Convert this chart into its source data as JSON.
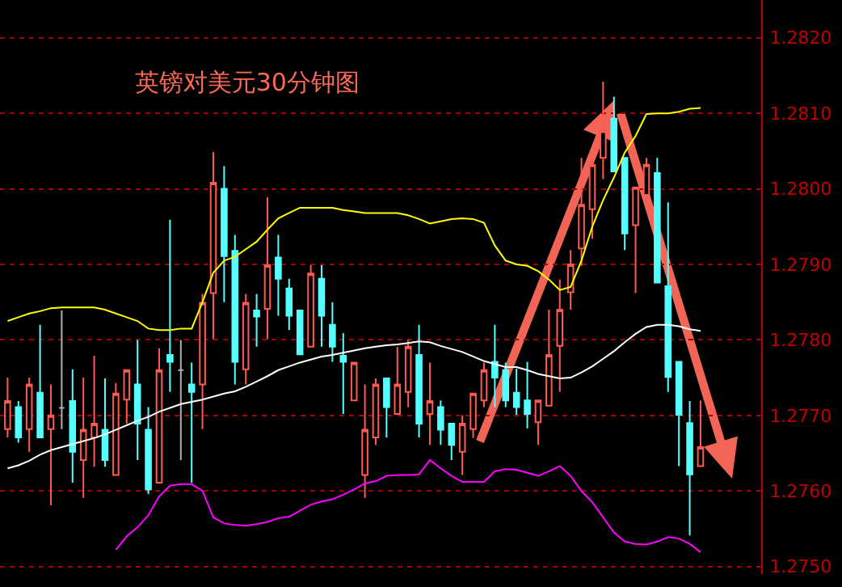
{
  "chart_data": {
    "type": "candlestick",
    "title": "英镑对美元30分钟图",
    "categories": [
      null,
      null,
      null,
      null,
      null,
      null,
      null,
      null,
      null,
      null,
      null,
      null,
      null,
      null,
      null,
      null,
      null,
      null,
      null,
      null,
      null,
      null,
      null,
      null,
      null,
      null,
      null,
      null,
      null,
      null,
      null,
      null,
      null,
      null,
      null,
      null,
      null,
      null,
      null,
      null,
      null,
      null,
      null,
      null,
      null,
      null,
      null,
      null,
      null,
      null,
      null,
      null,
      null,
      null,
      null,
      null,
      null,
      null,
      null,
      null,
      null,
      null,
      null,
      null,
      null
    ],
    "colors": [
      "#ff5a50",
      "#54ffff",
      "#ff5a50",
      "#54ffff",
      "#ff5a50",
      "#b0b0b0",
      "#54ffff",
      "#ff5a50",
      "#ff5a50",
      "#54ffff",
      "#ff5a50",
      "#ff5a50",
      "#54ffff",
      "#54ffff",
      "#ff5a50",
      "#54ffff",
      "#b0b0b0",
      "#54ffff",
      "#ff5a50",
      "#ff5a50",
      "#54ffff",
      "#54ffff",
      "#ff5a50",
      "#54ffff",
      "#ff5a50",
      "#54ffff",
      "#54ffff",
      "#54ffff",
      "#ff5a50",
      "#54ffff",
      "#54ffff",
      "#54ffff",
      "#ff5a50",
      "#ff5a50",
      "#ff5a50",
      "#54ffff",
      "#ff5a50",
      "#ff5a50",
      "#54ffff",
      "#ff5a50",
      "#54ffff",
      "#54ffff",
      "#ff5a50",
      "#ff5a50",
      "#ff5a50",
      "#54ffff",
      "#54ffff",
      "#54ffff",
      "#54ffff",
      "#ff5a50",
      "#ff5a50",
      "#ff5a50",
      "#ff5a50",
      "#ff5a50",
      "#ff5a50",
      "#ff5a50",
      "#54ffff",
      "#54ffff",
      "#ff5a50",
      "#ff5a50",
      "#54ffff",
      "#54ffff",
      "#54ffff",
      "#54ffff",
      "#ff5a50"
    ],
    "ohlc": [
      [
        1.27682,
        1.2775,
        1.27671,
        1.27719
      ],
      [
        1.27711,
        1.27719,
        1.27664,
        1.27671
      ],
      [
        1.27682,
        1.2775,
        1.27652,
        1.27741
      ],
      [
        1.2773,
        1.2782,
        1.27671,
        1.27671
      ],
      [
        1.27682,
        1.27741,
        1.27581,
        1.277
      ],
      [
        1.2771,
        1.27839,
        1.27682,
        1.2771
      ],
      [
        1.27719,
        1.27761,
        1.27611,
        1.27652
      ],
      [
        1.27641,
        1.2775,
        1.27591,
        1.27681
      ],
      [
        1.27671,
        1.27779,
        1.27632,
        1.27689
      ],
      [
        1.27681,
        1.27749,
        1.27632,
        1.27641
      ],
      [
        1.27621,
        1.27743,
        1.27621,
        1.27729
      ],
      [
        1.27721,
        1.2776,
        1.27689,
        1.2776
      ],
      [
        1.27741,
        1.278,
        1.27641,
        1.27689
      ],
      [
        1.27681,
        1.27711,
        1.27596,
        1.27602
      ],
      [
        1.27611,
        1.27789,
        1.27611,
        1.2776
      ],
      [
        1.2778,
        1.27959,
        1.27731,
        1.27771
      ],
      [
        1.2776,
        1.278,
        1.27641,
        1.2776
      ],
      [
        1.27741,
        1.2777,
        1.27611,
        1.27731
      ],
      [
        1.27741,
        1.27861,
        1.27682,
        1.27849
      ],
      [
        1.27862,
        1.28049,
        1.27801,
        1.28008
      ],
      [
        1.28,
        1.2803,
        1.2785,
        1.27911
      ],
      [
        1.27918,
        1.27939,
        1.27741,
        1.27771
      ],
      [
        1.27761,
        1.27861,
        1.27741,
        1.27849
      ],
      [
        1.27839,
        1.27861,
        1.27791,
        1.27831
      ],
      [
        1.27841,
        1.27989,
        1.27801,
        1.27899
      ],
      [
        1.27909,
        1.27939,
        1.27832,
        1.27881
      ],
      [
        1.27868,
        1.27881,
        1.27813,
        1.27832
      ],
      [
        1.27839,
        1.27839,
        1.27781,
        1.27781
      ],
      [
        1.27791,
        1.27899,
        1.27791,
        1.27888
      ],
      [
        1.27881,
        1.27899,
        1.27791,
        1.27832
      ],
      [
        1.2782,
        1.2785,
        1.27771,
        1.27791
      ],
      [
        1.27779,
        1.27809,
        1.27702,
        1.27771
      ],
      [
        1.2772,
        1.2777,
        1.2772,
        1.2777
      ],
      [
        1.27621,
        1.27741,
        1.27591,
        1.27681
      ],
      [
        1.27671,
        1.27749,
        1.27661,
        1.27741
      ],
      [
        1.27749,
        1.27749,
        1.27671,
        1.27711
      ],
      [
        1.27702,
        1.27791,
        1.27702,
        1.27741
      ],
      [
        1.27731,
        1.278,
        1.27711,
        1.27791
      ],
      [
        1.2778,
        1.2782,
        1.27671,
        1.27689
      ],
      [
        1.27702,
        1.2777,
        1.27661,
        1.27719
      ],
      [
        1.27711,
        1.2772,
        1.27661,
        1.27681
      ],
      [
        1.27689,
        1.27689,
        1.27641,
        1.27661
      ],
      [
        1.27652,
        1.277,
        1.27621,
        1.27689
      ],
      [
        1.27682,
        1.27729,
        1.2767,
        1.27729
      ],
      [
        1.2772,
        1.2777,
        1.27711,
        1.2776
      ],
      [
        1.27771,
        1.2782,
        1.27711,
        1.2775
      ],
      [
        1.2776,
        1.2777,
        1.27711,
        1.2772
      ],
      [
        1.2773,
        1.27762,
        1.27701,
        1.27711
      ],
      [
        1.2772,
        1.27771,
        1.27683,
        1.27702
      ],
      [
        1.27691,
        1.2772,
        1.27661,
        1.2772
      ],
      [
        1.27713,
        1.2784,
        1.27713,
        1.2778
      ],
      [
        1.27792,
        1.2788,
        1.27731,
        1.2784
      ],
      [
        1.27863,
        1.27919,
        1.2784,
        1.279
      ],
      [
        1.27921,
        1.28041,
        1.27898,
        1.27979
      ],
      [
        1.27973,
        1.28041,
        1.27934,
        1.28032
      ],
      [
        1.28041,
        1.28142,
        1.28013,
        1.28077
      ],
      [
        1.28093,
        1.28122,
        1.28023,
        1.28023
      ],
      [
        1.28041,
        1.28041,
        1.27919,
        1.27941
      ],
      [
        1.27952,
        1.28002,
        1.27862,
        1.28002
      ],
      [
        1.27992,
        1.28041,
        1.27992,
        1.28032
      ],
      [
        1.28021,
        1.28041,
        1.27876,
        1.27876
      ],
      [
        1.27871,
        1.27982,
        1.27731,
        1.27751
      ],
      [
        1.27771,
        1.27771,
        1.27633,
        1.27701
      ],
      [
        1.2769,
        1.27719,
        1.27541,
        1.27622
      ],
      [
        1.27633,
        1.2772,
        1.27633,
        1.27658
      ]
    ],
    "series": [
      {
        "type": "line",
        "color": "#ffff00",
        "values": [
          1.27825,
          1.2783,
          1.27835,
          1.27838,
          1.27842,
          1.27843,
          1.27843,
          1.27843,
          1.27843,
          1.2784,
          1.27835,
          1.2783,
          1.27825,
          1.27815,
          1.27813,
          1.27813,
          1.27815,
          1.27815,
          1.2785,
          1.27889,
          1.27905,
          1.2791,
          1.2792,
          1.2793,
          1.27946,
          1.27961,
          1.27968,
          1.27975,
          1.27975,
          1.27975,
          1.27975,
          1.27972,
          1.2797,
          1.27968,
          1.27968,
          1.27968,
          1.27968,
          1.27965,
          1.2796,
          1.27954,
          1.27957,
          1.2796,
          1.27961,
          1.2796,
          1.27955,
          1.27925,
          1.27905,
          1.279,
          1.27898,
          1.27891,
          1.2788,
          1.27866,
          1.2787,
          1.27905,
          1.2795,
          1.27985,
          1.28015,
          1.28048,
          1.2807,
          1.28099,
          1.281,
          1.281,
          1.28102,
          1.28106,
          1.28107
        ]
      },
      {
        "type": "line",
        "color": "#ffffff",
        "values": [
          1.2763,
          1.27634,
          1.2764,
          1.27648,
          1.27654,
          1.27658,
          1.27662,
          1.27666,
          1.2767,
          1.27675,
          1.27681,
          1.27687,
          1.27693,
          1.27698,
          1.27705,
          1.2771,
          1.27715,
          1.27718,
          1.27721,
          1.27725,
          1.27729,
          1.27732,
          1.27738,
          1.27745,
          1.27752,
          1.2776,
          1.27765,
          1.2777,
          1.27774,
          1.27778,
          1.2778,
          1.27783,
          1.27786,
          1.27789,
          1.27791,
          1.27793,
          1.27794,
          1.27796,
          1.27798,
          1.27797,
          1.27792,
          1.27788,
          1.27784,
          1.27778,
          1.27772,
          1.27768,
          1.27764,
          1.27764,
          1.2776,
          1.27755,
          1.27752,
          1.27749,
          1.2775,
          1.27757,
          1.27765,
          1.27775,
          1.27785,
          1.27797,
          1.27808,
          1.27817,
          1.2782,
          1.2782,
          1.27818,
          1.27814,
          1.27812
        ]
      },
      {
        "type": "line",
        "color": "#ff00ff",
        "values": [
          null,
          null,
          null,
          null,
          null,
          null,
          null,
          null,
          null,
          null,
          1.27522,
          1.2754,
          1.27552,
          1.27568,
          1.27593,
          1.27607,
          1.27609,
          1.27609,
          1.276,
          1.27565,
          1.27557,
          1.27555,
          1.27554,
          1.27556,
          1.27559,
          1.27564,
          1.27566,
          1.27574,
          1.27582,
          1.27586,
          1.27589,
          1.27595,
          1.27602,
          1.2761,
          1.27613,
          1.2762,
          1.27621,
          1.27621,
          1.27622,
          1.27641,
          1.2763,
          1.2762,
          1.27612,
          1.27612,
          1.27612,
          1.27626,
          1.27629,
          1.27628,
          1.27624,
          1.2762,
          1.27626,
          1.27633,
          1.2762,
          1.276,
          1.27585,
          1.27565,
          1.27545,
          1.27533,
          1.2753,
          1.27529,
          1.27533,
          1.27539,
          1.27537,
          1.2753,
          1.27519
        ]
      }
    ],
    "ylim": [
      1.2749,
      1.2825
    ],
    "yticks": [
      {
        "value": 1.275,
        "label": "1.2750"
      },
      {
        "value": 1.276,
        "label": "1.2760"
      },
      {
        "value": 1.277,
        "label": "1.2770"
      },
      {
        "value": 1.278,
        "label": "1.2780"
      },
      {
        "value": 1.279,
        "label": "1.2790"
      },
      {
        "value": 1.28,
        "label": "1.2800"
      },
      {
        "value": 1.281,
        "label": "1.2810"
      },
      {
        "value": 1.282,
        "label": "1.2820"
      }
    ],
    "grid": "y",
    "marker": "none",
    "line_style": "solid"
  }
}
